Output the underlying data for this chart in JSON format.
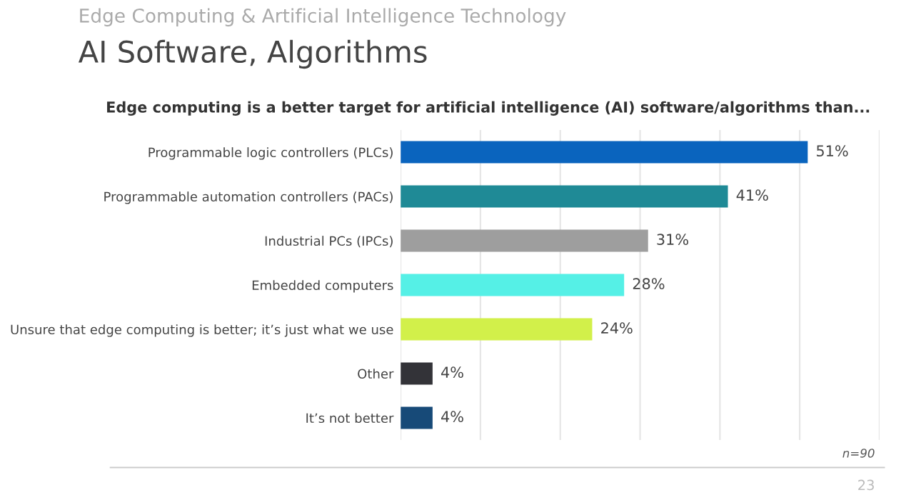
{
  "chart_data": {
    "type": "bar",
    "orientation": "horizontal",
    "title": "Edge computing is a better target for artificial intelligence (AI) software/algorithms than...",
    "subtitle": "Edge Computing & Artificial Intelligence Technology",
    "annotations": [
      "AI Software, Algorithms",
      "n=90",
      "23"
    ],
    "categories": [
      "Programmable logic controllers (PLCs)",
      "Programmable automation controllers (PACs)",
      "Industrial PCs (IPCs)",
      "Embedded computers",
      "Unsure that edge computing is better; it’s just what we use",
      "Other",
      "It’s not better"
    ],
    "values": [
      51,
      41,
      31,
      28,
      24,
      4,
      4
    ],
    "colors": [
      "#0a64be",
      "#1f8a96",
      "#9e9e9e",
      "#55f0e6",
      "#d2f04a",
      "#333338",
      "#174a78"
    ],
    "value_labels": [
      "51%",
      "41%",
      "31%",
      "28%",
      "24%",
      "4%",
      "4%"
    ],
    "xlim": [
      0,
      60
    ],
    "xticks": [
      {
        "value": 0,
        "label": null
      },
      {
        "value": 10,
        "label": null
      },
      {
        "value": 20,
        "label": null
      },
      {
        "value": 30,
        "label": null
      },
      {
        "value": 40,
        "label": null
      },
      {
        "value": 50,
        "label": null
      },
      {
        "value": 60,
        "label": null
      }
    ],
    "grid": "x",
    "tick_labels": "y"
  }
}
